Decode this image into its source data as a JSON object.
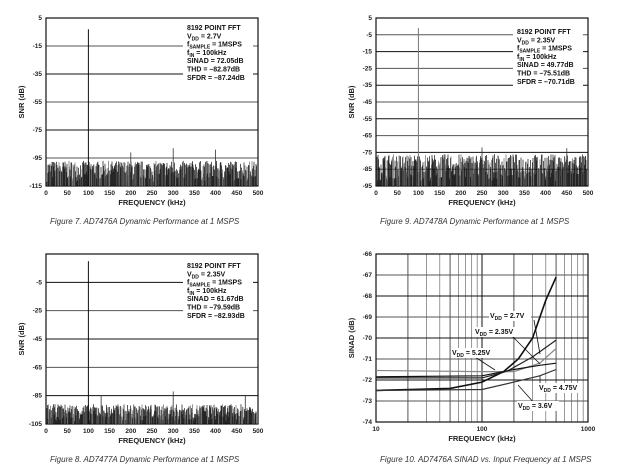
{
  "chart_data": [
    {
      "type": "bar",
      "title": "Figure 7. AD7476A Dynamic Performance at 1 MSPS",
      "xlabel": "FREQUENCY (kHz)",
      "ylabel": "SNR (dB)",
      "xlim": [
        0,
        500
      ],
      "ylim": [
        -115,
        5
      ],
      "xticks": [
        "0",
        "50",
        "100",
        "150",
        "200",
        "250",
        "300",
        "350",
        "400",
        "450",
        "500"
      ],
      "yticks": [
        "5",
        "-15",
        "-35",
        "-55",
        "-75",
        "-95",
        "-115"
      ],
      "noise_floor": [
        -112,
        -97
      ],
      "fundamental": {
        "x": 100,
        "y": -3
      },
      "spurs": [
        {
          "x": 200,
          "y": -91
        },
        {
          "x": 300,
          "y": -88
        },
        {
          "x": 400,
          "y": -89
        }
      ],
      "annotation": [
        {
          "main": "8192 POINT FFT"
        },
        {
          "main": "V",
          "sub": "DD",
          "rest": " = 2.7V"
        },
        {
          "main": "f",
          "sub": "SAMPLE",
          "rest": " = 1MSPS"
        },
        {
          "main": "f",
          "sub": "IN",
          "rest": " = 100kHz"
        },
        {
          "main": "SINAD = 72.05dB"
        },
        {
          "main": "THD = –82.87dB"
        },
        {
          "main": "SFDR = –87.24dB"
        }
      ]
    },
    {
      "type": "bar",
      "title": "Figure 9. AD7478A Dynamic Performance at 1 MSPS",
      "xlabel": "FREQUENCY (kHz)",
      "ylabel": "SNR (dB)",
      "xlim": [
        0,
        500
      ],
      "ylim": [
        -95,
        5
      ],
      "xticks": [
        "0",
        "50",
        "100",
        "150",
        "200",
        "250",
        "300",
        "350",
        "400",
        "450",
        "500"
      ],
      "yticks": [
        "5",
        "-5",
        "-15",
        "-25",
        "-35",
        "-45",
        "-55",
        "-65",
        "-75",
        "-85",
        "-95"
      ],
      "noise_floor": [
        -92,
        -76
      ],
      "fundamental": {
        "x": 100,
        "y": -1
      },
      "spurs": [
        {
          "x": 250,
          "y": -72
        },
        {
          "x": 450,
          "y": -72.5
        }
      ],
      "annotation": [
        {
          "main": "8192 POINT FFT"
        },
        {
          "main": "V",
          "sub": "DD",
          "rest": " = 2.35V"
        },
        {
          "main": "f",
          "sub": "SAMPLE",
          "rest": " = 1MSPS"
        },
        {
          "main": "f",
          "sub": "IN",
          "rest": " = 100kHz"
        },
        {
          "main": "SINAD = 49.77dB"
        },
        {
          "main": "THD = –75.51dB"
        },
        {
          "main": "SFDR = –70.71dB"
        }
      ]
    },
    {
      "type": "bar",
      "title": "Figure 8. AD7477A Dynamic Performance at 1 MSPS",
      "xlabel": "FREQUENCY (kHz)",
      "ylabel": "SNR (dB)",
      "xlim": [
        0,
        500
      ],
      "ylim": [
        -105,
        15
      ],
      "xticks": [
        "0",
        "50",
        "100",
        "150",
        "200",
        "250",
        "300",
        "350",
        "400",
        "450",
        "500"
      ],
      "yticks": [
        "-5",
        "-25",
        "-45",
        "-65",
        "-85",
        "-105"
      ],
      "noise_floor": [
        -103,
        -91
      ],
      "fundamental": {
        "x": 100,
        "y": 10
      },
      "spurs": [
        {
          "x": 130,
          "y": -85
        },
        {
          "x": 300,
          "y": -82
        },
        {
          "x": 470,
          "y": -85
        }
      ],
      "annotation": [
        {
          "main": "8192 POINT FFT"
        },
        {
          "main": "V",
          "sub": "DD",
          "rest": " = 2.35V"
        },
        {
          "main": "f",
          "sub": "SAMPLE",
          "rest": " = 1MSPS"
        },
        {
          "main": "f",
          "sub": "IN",
          "rest": " = 100kHz"
        },
        {
          "main": "SINAD = 61.67dB"
        },
        {
          "main": "THD = –79.59dB"
        },
        {
          "main": "SFDR = –82.93dB"
        }
      ]
    },
    {
      "type": "line",
      "title": "Figure 10. AD7476A SINAD vs. Input Frequency at 1 MSPS",
      "xlabel": "FREQUENCY (kHz)",
      "ylabel": "SINAD (dB)",
      "xscale": "log",
      "xlim": [
        10,
        1000
      ],
      "ylim": [
        -74,
        -66
      ],
      "xticks": [
        "10",
        "100",
        "1000"
      ],
      "yticks": [
        "-66",
        "-67",
        "-68",
        "-69",
        "-70",
        "-71",
        "-72",
        "-73",
        "-74"
      ],
      "series": [
        {
          "name": "V_DD = 2.7V",
          "label_main": "V",
          "label_sub": "DD",
          "label_rest": " = 2.7V",
          "color": "#111111",
          "x": [
            10,
            50,
            100,
            160,
            220,
            300,
            400,
            500
          ],
          "y": [
            -72.5,
            -72.4,
            -72.1,
            -71.6,
            -71.0,
            -70.0,
            -68.2,
            -67.1
          ]
        },
        {
          "name": "V_DD = 2.35V",
          "label_main": "V",
          "label_sub": "DD",
          "label_rest": " = 2.35V",
          "color": "#222222",
          "x": [
            10,
            100,
            170,
            300,
            500
          ],
          "y": [
            -71.9,
            -71.9,
            -71.6,
            -70.9,
            -70.1
          ]
        },
        {
          "name": "V_DD = 5.25V",
          "label_main": "V",
          "label_sub": "DD",
          "label_rest": " = 5.25V",
          "color": "#888888",
          "x": [
            10,
            100,
            200,
            350,
            500
          ],
          "y": [
            -71.55,
            -71.6,
            -71.6,
            -71.2,
            -70.5
          ]
        },
        {
          "name": "V_DD = 4.75V",
          "label_main": "V",
          "label_sub": "DD",
          "label_rest": " = 4.75V",
          "color": "#111111",
          "x": [
            10,
            100,
            200,
            350,
            500
          ],
          "y": [
            -71.85,
            -71.8,
            -71.5,
            -71.3,
            -71.2
          ]
        },
        {
          "name": "V_DD = 3.6V",
          "label_main": "V",
          "label_sub": "DD",
          "label_rest": " = 3.6V",
          "color": "#333333",
          "x": [
            10,
            100,
            200,
            350,
            500
          ],
          "y": [
            -72.5,
            -72.45,
            -72.1,
            -71.8,
            -71.5
          ]
        }
      ]
    }
  ]
}
